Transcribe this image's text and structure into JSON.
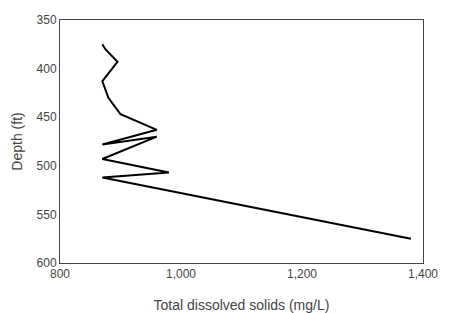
{
  "chart_data": {
    "type": "line",
    "x": [
      870,
      875,
      895,
      870,
      880,
      900,
      960,
      870,
      960,
      870,
      980,
      870,
      1380
    ],
    "values": [
      375,
      380,
      393,
      413,
      430,
      447,
      463,
      478,
      470,
      493,
      507,
      512,
      575
    ],
    "color": "#000000",
    "xlabel": "Total dissolved solids (mg/L)",
    "ylabel": "Depth (ft)",
    "xlim": [
      800,
      1400
    ],
    "ylim": [
      600,
      350
    ],
    "xticks": [
      800,
      {
        "value": 1000,
        "label": "1,000"
      },
      {
        "value": 1200,
        "label": "1,200"
      },
      {
        "value": 1400,
        "label": "1,400"
      }
    ],
    "yticks": [
      350,
      400,
      450,
      500,
      550,
      600
    ],
    "grid": false
  }
}
